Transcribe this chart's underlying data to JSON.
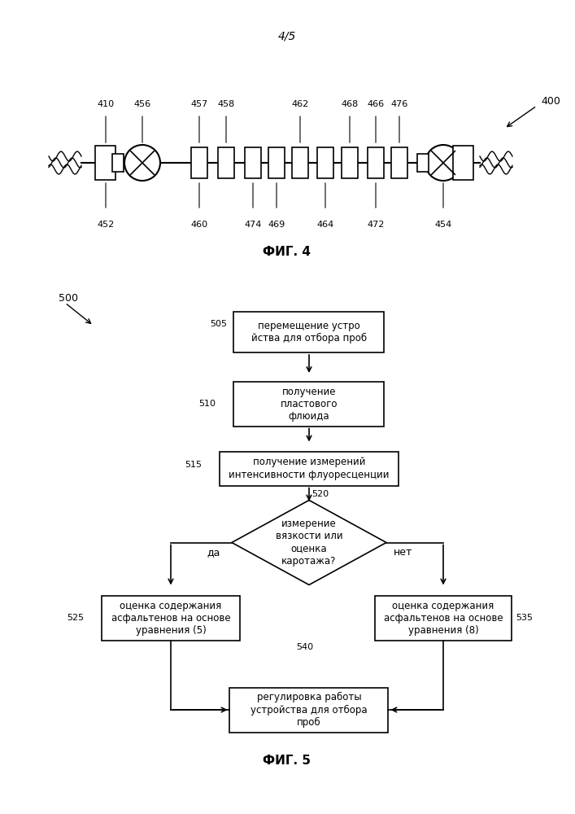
{
  "page_label": "4/5",
  "fig4_label": "ФИГ. 4",
  "fig5_label": "ФИГ. 5",
  "fig4_ref": "400",
  "fig5_ref": "500",
  "fig4_top_labels": [
    "410",
    "456",
    "457",
    "458",
    "462",
    "468",
    "466",
    "476"
  ],
  "fig4_bottom_labels": [
    "452",
    "460",
    "474",
    "469",
    "464",
    "472",
    "454"
  ],
  "flowchart": {
    "505_label": "505",
    "505_text": "перемещение устро\nйства для отбора проб",
    "510_label": "510",
    "510_text": "получение\nпластового\nфлюида",
    "515_label": "515",
    "515_text": "получение измерений\nинтенсивности флуоресценции",
    "520_label": "520",
    "520_text": "измерение\nвязкости или\nоценка\nкаротажа?",
    "525_label": "525",
    "525_text": "оценка содержания\nасфальтенов на основе\nуравнения (5)",
    "535_label": "535",
    "535_text": "оценка содержания\nасфальтенов на основе\nуравнения (8)",
    "540_label": "540",
    "540_text": "регулировка работы\nустройства для отбора\nпроб",
    "yes_label": "да",
    "no_label": "нет"
  },
  "bg_color": "#ffffff",
  "box_color": "#000000",
  "text_color": "#000000",
  "fontsize": 9,
  "fontname": "DejaVu Sans"
}
